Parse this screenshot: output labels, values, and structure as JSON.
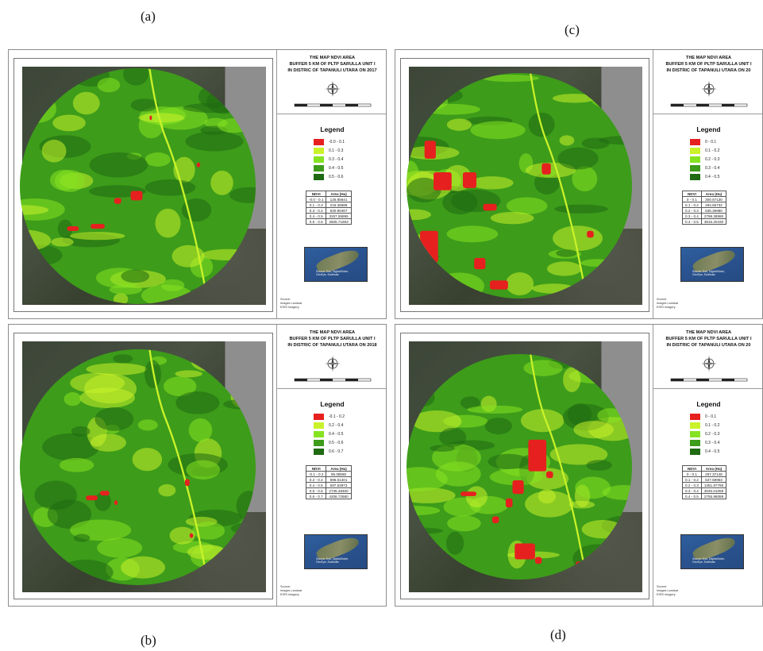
{
  "figure_labels": {
    "a": "(a)",
    "b": "(b)",
    "c": "(c)",
    "d": "(d)"
  },
  "legend_heading": "Legend",
  "table_headers": [
    "NDVI",
    "Area (Ha)"
  ],
  "source_label": "Source:",
  "source_lines": [
    "Images Landsat",
    "ESRI Imagery"
  ],
  "colors": {
    "red": "#e6201f",
    "pale_green": "#c9f22a",
    "light_green": "#86e321",
    "mid_green": "#3d9c1a",
    "dark_green": "#1f6a12"
  },
  "icons": [
    "north-arrow-icon"
  ],
  "panels": [
    {
      "id": "a",
      "title_lines": [
        "THE MAP NDVI AREA",
        "BUFFER 5 KM OF PLTP SARULLA UNIT I",
        "IN DISTRIC OF TAPANULI UTARA ON 2017"
      ],
      "legend": [
        "-0.0 - 0.1",
        "0.1 - 0.3",
        "0.3 - 0.4",
        "0.4 - 0.5",
        "0.5 - 0.6"
      ],
      "table_rows": [
        [
          "-0.0 - 0.1",
          "125.85641"
        ],
        [
          "0.1 - 0.3",
          "216.36588"
        ],
        [
          "0.3 - 0.4",
          "830.80467"
        ],
        [
          "0.4 - 0.5",
          "3267.55695"
        ],
        [
          "0.5 - 0.6",
          "3606.71693"
        ]
      ],
      "inset_note": [
        "Source: Esri, DigitalGlobe,",
        "GeoEye, Earthstar"
      ]
    },
    {
      "id": "b",
      "title_lines": [
        "THE MAP NDVI AREA",
        "BUFFER 5 KM OF PLTP SARULLA UNIT I",
        "IN DISTRIC OF TAPANULI UTARA ON 2018"
      ],
      "legend": [
        "-0.1 - 0.2",
        "0.2 - 0.4",
        "0.4 - 0.5",
        "0.5 - 0.6",
        "0.6 - 0.7"
      ],
      "table_rows": [
        [
          "-0.1 - 0.2",
          "85.08580"
        ],
        [
          "0.2 - 0.4",
          "896.51401"
        ],
        [
          "0.4 - 0.5",
          "597.53973"
        ],
        [
          "0.5 - 0.6",
          "2735.48460"
        ],
        [
          "0.6 - 0.7",
          "4208.72580"
        ]
      ],
      "inset_note": [
        "Source: Esri, DigitalGlobe,",
        "GeoEye, Earthstar"
      ]
    },
    {
      "id": "c",
      "title_lines": [
        "THE MAP NDVI AREA",
        "BUFFER 5 KM OF PLTP SARULLA UNIT I",
        "IN DISTRIC OF TAPANULI UTARA ON 20"
      ],
      "legend": [
        "0 - 0.1",
        "0.1 - 0.2",
        "0.2 - 0.3",
        "0.3 - 0.4",
        "0.4 - 0.5"
      ],
      "table_rows": [
        [
          "0 - 0.1",
          "300.67130"
        ],
        [
          "0.1 - 0.2",
          "494.65732"
        ],
        [
          "0.2 - 0.3",
          "636.36980"
        ],
        [
          "0.3 - 0.4",
          "2798.38990"
        ],
        [
          "0.4 - 0.5",
          "3815.20430"
        ]
      ],
      "inset_note": [
        "Source: Esri, DigitalGlobe,",
        "GeoEye, Earthstar"
      ]
    },
    {
      "id": "d",
      "title_lines": [
        "THE MAP NDVI AREA",
        "BUFFER 5 KM OF PLTP SARULLA UNIT I",
        "IN DISTRIC OF TAPANULI UTARA ON 20"
      ],
      "legend": [
        "0 - 0.1",
        "0.1 - 0.2",
        "0.2 - 0.3",
        "0.3 - 0.4",
        "0.4 - 0.5"
      ],
      "table_rows": [
        [
          "0 - 0.1",
          "267.37148"
        ],
        [
          "0.1 - 0.2",
          "627.59953"
        ],
        [
          "0.2 - 0.3",
          "1351.87795"
        ],
        [
          "0.3 - 0.4",
          "3045.01059"
        ],
        [
          "0.4 - 0.5",
          "2755.98088"
        ]
      ],
      "inset_note": [
        "Source: Esri, DigitalGlobe,",
        "GeoEye, Earthstar"
      ]
    }
  ]
}
